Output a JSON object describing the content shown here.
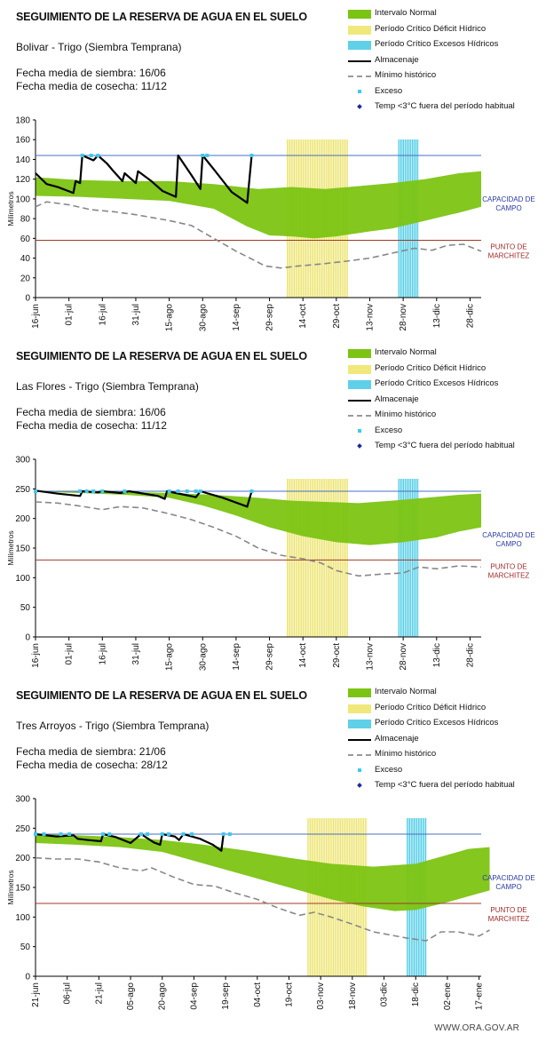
{
  "footer": "WWW.ORA.GOV.AR",
  "legend_items": [
    {
      "label": "Intervalo Normal",
      "color": "#7cc413",
      "kind": "band"
    },
    {
      "label": "Período Crítico Déficit Hídrico",
      "color": "#f0e87a",
      "kind": "band"
    },
    {
      "label": "Período Crítico Excesos Hídricos",
      "color": "#5fd0e8",
      "kind": "band"
    },
    {
      "label": "Almacenaje",
      "color": "#000000",
      "kind": "line"
    },
    {
      "label": "Mínimo histórico",
      "color": "#999999",
      "kind": "dash"
    },
    {
      "label": "Exceso",
      "color": "#3ec8f0",
      "kind": "dot"
    },
    {
      "label": "Temp <3°C fuera del período habitual",
      "color": "#1f2a9c",
      "kind": "diamond"
    }
  ],
  "chart_data": [
    {
      "type": "line",
      "title": "SEGUIMIENTO DE LA RESERVA DE AGUA EN EL SUELO",
      "site": "Bolivar - Trigo (Siembra Temprana)",
      "sowing_date": "Fecha media de siembra: 16/06",
      "harvest_date": "Fecha media de cosecha: 11/12",
      "ylabel": "Milímetros",
      "ylim": [
        0,
        180
      ],
      "yticks": [
        0,
        20,
        40,
        60,
        80,
        100,
        120,
        140,
        160,
        180
      ],
      "x_range_days": [
        0,
        200
      ],
      "x_ticks": [
        {
          "d": 0,
          "label": "16-jun"
        },
        {
          "d": 15,
          "label": "01-jul"
        },
        {
          "d": 30,
          "label": "16-jul"
        },
        {
          "d": 45,
          "label": "31-jul"
        },
        {
          "d": 60,
          "label": "15-ago"
        },
        {
          "d": 75,
          "label": "30-ago"
        },
        {
          "d": 90,
          "label": "14-sep"
        },
        {
          "d": 105,
          "label": "29-sep"
        },
        {
          "d": 120,
          "label": "14-oct"
        },
        {
          "d": 135,
          "label": "29-oct"
        },
        {
          "d": 150,
          "label": "13-nov"
        },
        {
          "d": 165,
          "label": "28-nov"
        },
        {
          "d": 180,
          "label": "13-dic"
        },
        {
          "d": 195,
          "label": "28-dic"
        }
      ],
      "field_capacity": {
        "value": 144,
        "label": "CAPACIDAD DE CAMPO"
      },
      "wilting_point": {
        "value": 58,
        "label": "PUNTO DE MARCHITEZ"
      },
      "deficit_period_days": [
        113,
        140
      ],
      "excess_period_days": [
        163,
        172
      ],
      "normal_upper": [
        [
          0,
          122
        ],
        [
          20,
          119
        ],
        [
          40,
          118
        ],
        [
          60,
          118
        ],
        [
          80,
          115
        ],
        [
          100,
          110
        ],
        [
          115,
          112
        ],
        [
          130,
          110
        ],
        [
          145,
          113
        ],
        [
          160,
          116
        ],
        [
          175,
          120
        ],
        [
          190,
          126
        ],
        [
          200,
          128
        ]
      ],
      "normal_lower": [
        [
          0,
          103
        ],
        [
          20,
          102
        ],
        [
          40,
          100
        ],
        [
          60,
          98
        ],
        [
          80,
          90
        ],
        [
          95,
          72
        ],
        [
          105,
          63
        ],
        [
          115,
          62
        ],
        [
          125,
          60
        ],
        [
          135,
          62
        ],
        [
          150,
          67
        ],
        [
          160,
          70
        ],
        [
          175,
          78
        ],
        [
          190,
          86
        ],
        [
          200,
          92
        ]
      ],
      "storage": [
        [
          0,
          126
        ],
        [
          5,
          115
        ],
        [
          10,
          112
        ],
        [
          17,
          106
        ],
        [
          18,
          118
        ],
        [
          20,
          116
        ],
        [
          21,
          144
        ],
        [
          26,
          139
        ],
        [
          28,
          144
        ],
        [
          32,
          136
        ],
        [
          35,
          128
        ],
        [
          39,
          118
        ],
        [
          40,
          126
        ],
        [
          45,
          116
        ],
        [
          46,
          128
        ],
        [
          52,
          118
        ],
        [
          57,
          108
        ],
        [
          63,
          102
        ],
        [
          64,
          144
        ],
        [
          70,
          124
        ],
        [
          74,
          110
        ],
        [
          75,
          144
        ],
        [
          80,
          130
        ],
        [
          88,
          107
        ],
        [
          95,
          96
        ],
        [
          97,
          144
        ]
      ],
      "historic_min": [
        [
          0,
          92
        ],
        [
          5,
          97
        ],
        [
          15,
          94
        ],
        [
          25,
          89
        ],
        [
          35,
          87
        ],
        [
          45,
          84
        ],
        [
          60,
          78
        ],
        [
          70,
          73
        ],
        [
          80,
          60
        ],
        [
          90,
          47
        ],
        [
          98,
          38
        ],
        [
          103,
          32
        ],
        [
          110,
          30
        ],
        [
          118,
          32
        ],
        [
          128,
          34
        ],
        [
          140,
          37
        ],
        [
          150,
          40
        ],
        [
          160,
          45
        ],
        [
          170,
          50
        ],
        [
          178,
          48
        ],
        [
          185,
          53
        ],
        [
          192,
          54
        ],
        [
          200,
          47
        ]
      ],
      "excess_days": [
        21,
        25,
        28,
        75,
        77,
        97
      ]
    },
    {
      "type": "line",
      "title": "SEGUIMIENTO DE LA RESERVA DE AGUA EN EL SUELO",
      "site": "Las Flores - Trigo (Siembra Temprana)",
      "sowing_date": "Fecha media de siembra: 16/06",
      "harvest_date": "Fecha media de cosecha: 11/12",
      "ylabel": "Milímetros",
      "ylim": [
        0,
        300
      ],
      "yticks": [
        0,
        50,
        100,
        150,
        200,
        250,
        300
      ],
      "x_range_days": [
        0,
        200
      ],
      "x_ticks": [
        {
          "d": 0,
          "label": "16-jun"
        },
        {
          "d": 15,
          "label": "01-jul"
        },
        {
          "d": 30,
          "label": "16-jul"
        },
        {
          "d": 45,
          "label": "31-jul"
        },
        {
          "d": 60,
          "label": "15-ago"
        },
        {
          "d": 75,
          "label": "30-ago"
        },
        {
          "d": 90,
          "label": "14-sep"
        },
        {
          "d": 105,
          "label": "29-sep"
        },
        {
          "d": 120,
          "label": "14-oct"
        },
        {
          "d": 135,
          "label": "29-oct"
        },
        {
          "d": 150,
          "label": "13-nov"
        },
        {
          "d": 165,
          "label": "28-nov"
        },
        {
          "d": 180,
          "label": "13-dic"
        },
        {
          "d": 195,
          "label": "28-dic"
        }
      ],
      "field_capacity": {
        "value": 246,
        "label": "CAPACIDAD DE CAMPO"
      },
      "wilting_point": {
        "value": 130,
        "label": "PUNTO DE MARCHITEZ"
      },
      "deficit_period_days": [
        113,
        140
      ],
      "excess_period_days": [
        163,
        172
      ],
      "normal_upper": [
        [
          0,
          247
        ],
        [
          20,
          246
        ],
        [
          40,
          245
        ],
        [
          60,
          243
        ],
        [
          80,
          240
        ],
        [
          100,
          235
        ],
        [
          115,
          230
        ],
        [
          130,
          228
        ],
        [
          145,
          226
        ],
        [
          160,
          230
        ],
        [
          175,
          235
        ],
        [
          190,
          240
        ],
        [
          200,
          242
        ]
      ],
      "normal_lower": [
        [
          0,
          245
        ],
        [
          20,
          243
        ],
        [
          40,
          240
        ],
        [
          60,
          235
        ],
        [
          75,
          222
        ],
        [
          90,
          205
        ],
        [
          105,
          185
        ],
        [
          120,
          170
        ],
        [
          135,
          160
        ],
        [
          150,
          155
        ],
        [
          165,
          160
        ],
        [
          180,
          168
        ],
        [
          190,
          178
        ],
        [
          200,
          185
        ]
      ],
      "storage": [
        [
          0,
          247
        ],
        [
          10,
          242
        ],
        [
          20,
          238
        ],
        [
          21,
          246
        ],
        [
          28,
          244
        ],
        [
          30,
          246
        ],
        [
          38,
          243
        ],
        [
          42,
          246
        ],
        [
          55,
          238
        ],
        [
          58,
          233
        ],
        [
          59,
          246
        ],
        [
          67,
          240
        ],
        [
          72,
          236
        ],
        [
          74,
          246
        ],
        [
          84,
          235
        ],
        [
          95,
          220
        ],
        [
          97,
          246
        ]
      ],
      "historic_min": [
        [
          0,
          228
        ],
        [
          10,
          226
        ],
        [
          20,
          221
        ],
        [
          30,
          215
        ],
        [
          38,
          220
        ],
        [
          48,
          218
        ],
        [
          60,
          208
        ],
        [
          70,
          198
        ],
        [
          80,
          185
        ],
        [
          90,
          170
        ],
        [
          100,
          150
        ],
        [
          110,
          138
        ],
        [
          120,
          132
        ],
        [
          128,
          125
        ],
        [
          135,
          112
        ],
        [
          145,
          103
        ],
        [
          155,
          106
        ],
        [
          165,
          108
        ],
        [
          172,
          118
        ],
        [
          180,
          115
        ],
        [
          190,
          120
        ],
        [
          200,
          118
        ]
      ],
      "excess_days": [
        0,
        20,
        23,
        26,
        30,
        40,
        60,
        64,
        68,
        72,
        74,
        97
      ]
    },
    {
      "type": "line",
      "title": "SEGUIMIENTO DE LA RESERVA DE AGUA EN EL SUELO",
      "site": "Tres Arroyos - Trigo (Siembra Temprana)",
      "sowing_date": "Fecha media de siembra: 21/06",
      "harvest_date": "Fecha media de cosecha: 28/12",
      "ylabel": "Milímetros",
      "ylim": [
        0,
        300
      ],
      "yticks": [
        0,
        50,
        100,
        150,
        200,
        250,
        300
      ],
      "x_range_days": [
        0,
        211
      ],
      "x_ticks": [
        {
          "d": 0,
          "label": "21-jun"
        },
        {
          "d": 15,
          "label": "06-jul"
        },
        {
          "d": 30,
          "label": "21-jul"
        },
        {
          "d": 45,
          "label": "05-ago"
        },
        {
          "d": 60,
          "label": "20-ago"
        },
        {
          "d": 75,
          "label": "04-sep"
        },
        {
          "d": 90,
          "label": "19-sep"
        },
        {
          "d": 105,
          "label": "04-oct"
        },
        {
          "d": 120,
          "label": "19-oct"
        },
        {
          "d": 135,
          "label": "03-nov"
        },
        {
          "d": 150,
          "label": "18-nov"
        },
        {
          "d": 165,
          "label": "03-dic"
        },
        {
          "d": 180,
          "label": "18-dic"
        },
        {
          "d": 195,
          "label": "02-ene"
        },
        {
          "d": 210,
          "label": "17-ene"
        }
      ],
      "field_capacity": {
        "value": 240,
        "label": "CAPACIDAD DE CAMPO"
      },
      "wilting_point": {
        "value": 123,
        "label": "PUNTO DE MARCHITEZ"
      },
      "deficit_period_days": [
        129,
        157
      ],
      "excess_period_days": [
        176,
        185
      ],
      "normal_upper": [
        [
          0,
          240
        ],
        [
          20,
          238
        ],
        [
          40,
          235
        ],
        [
          60,
          230
        ],
        [
          80,
          222
        ],
        [
          100,
          212
        ],
        [
          120,
          200
        ],
        [
          140,
          190
        ],
        [
          160,
          185
        ],
        [
          180,
          190
        ],
        [
          195,
          205
        ],
        [
          205,
          215
        ],
        [
          215,
          218
        ]
      ],
      "normal_lower": [
        [
          0,
          225
        ],
        [
          20,
          222
        ],
        [
          40,
          218
        ],
        [
          60,
          210
        ],
        [
          80,
          190
        ],
        [
          100,
          170
        ],
        [
          120,
          150
        ],
        [
          140,
          130
        ],
        [
          155,
          118
        ],
        [
          170,
          110
        ],
        [
          180,
          112
        ],
        [
          195,
          125
        ],
        [
          210,
          140
        ],
        [
          215,
          145
        ]
      ],
      "storage": [
        [
          0,
          240
        ],
        [
          10,
          236
        ],
        [
          18,
          238
        ],
        [
          20,
          232
        ],
        [
          25,
          230
        ],
        [
          31,
          228
        ],
        [
          32,
          240
        ],
        [
          38,
          235
        ],
        [
          45,
          225
        ],
        [
          50,
          240
        ],
        [
          56,
          226
        ],
        [
          59,
          222
        ],
        [
          60,
          240
        ],
        [
          66,
          236
        ],
        [
          68,
          230
        ],
        [
          70,
          240
        ],
        [
          78,
          232
        ],
        [
          84,
          222
        ],
        [
          88,
          212
        ],
        [
          89,
          240
        ]
      ],
      "historic_min": [
        [
          0,
          200
        ],
        [
          10,
          198
        ],
        [
          20,
          198
        ],
        [
          30,
          193
        ],
        [
          40,
          183
        ],
        [
          50,
          178
        ],
        [
          55,
          183
        ],
        [
          65,
          168
        ],
        [
          75,
          155
        ],
        [
          85,
          152
        ],
        [
          95,
          140
        ],
        [
          105,
          130
        ],
        [
          115,
          115
        ],
        [
          125,
          103
        ],
        [
          132,
          108
        ],
        [
          140,
          100
        ],
        [
          150,
          88
        ],
        [
          160,
          75
        ],
        [
          175,
          65
        ],
        [
          185,
          60
        ],
        [
          192,
          75
        ],
        [
          200,
          75
        ],
        [
          210,
          68
        ],
        [
          215,
          78
        ]
      ],
      "excess_days": [
        0,
        4,
        12,
        16,
        32,
        35,
        50,
        53,
        60,
        63,
        70,
        74,
        89,
        92
      ]
    }
  ]
}
